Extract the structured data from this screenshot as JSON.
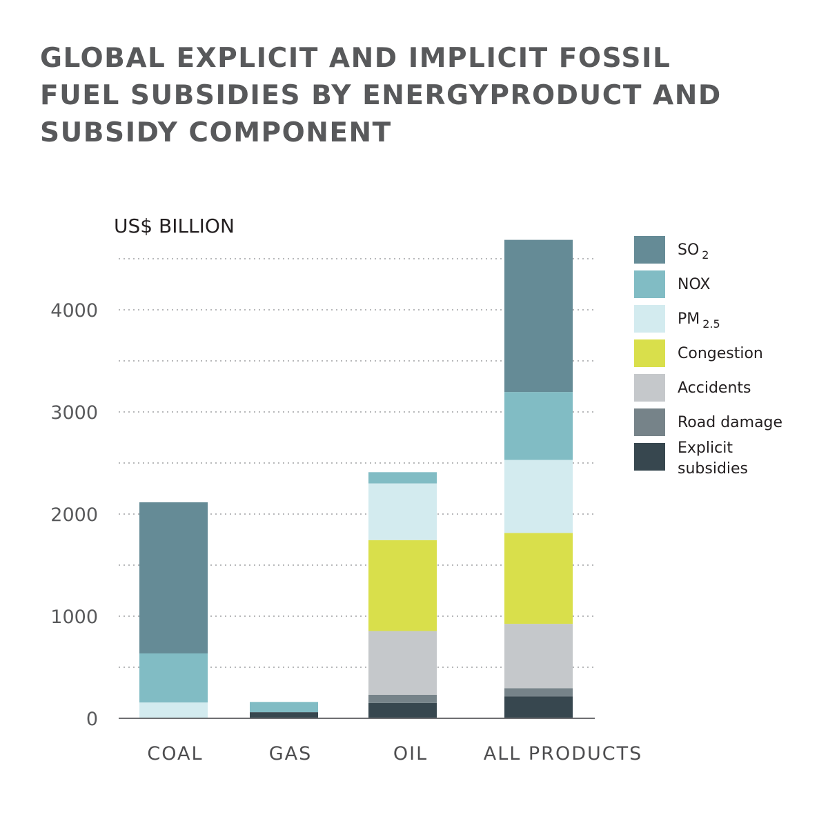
{
  "title": "GLOBAL EXPLICIT AND IMPLICIT FOSSIL FUEL SUBSIDIES BY ENERGYPRODUCT AND SUBSIDY COMPONENT",
  "chart_data": {
    "type": "bar",
    "stacked": true,
    "title": "GLOBAL EXPLICIT AND IMPLICIT FOSSIL FUEL SUBSIDIES BY ENERGYPRODUCT AND SUBSIDY COMPONENT",
    "ylabel": "US$ BILLION",
    "xlabel": "",
    "categories": [
      "COAL",
      "GAS",
      "OIL",
      "ALL PRODUCTS"
    ],
    "ylim": [
      0,
      4700
    ],
    "yticks": [
      0,
      1000,
      2000,
      3000,
      4000
    ],
    "grid": true,
    "legend_position": "right",
    "series": [
      {
        "name": "Explicit subsidies",
        "color": "#37474f",
        "values": [
          0,
          60,
          150,
          215
        ]
      },
      {
        "name": "Road damage",
        "color": "#768389",
        "values": [
          0,
          0,
          80,
          80
        ]
      },
      {
        "name": "Accidents",
        "color": "#c5c8cb",
        "values": [
          0,
          0,
          625,
          630
        ]
      },
      {
        "name": "Congestion",
        "color": "#d9df4b",
        "values": [
          0,
          0,
          890,
          890
        ]
      },
      {
        "name": "PM 2.5",
        "color": "#d3ebef",
        "values": [
          155,
          0,
          555,
          715
        ]
      },
      {
        "name": "NOX",
        "color": "#81bcc4",
        "values": [
          480,
          100,
          110,
          665
        ]
      },
      {
        "name": "SO2",
        "color": "#658b96",
        "values": [
          1480,
          0,
          0,
          1490
        ]
      }
    ],
    "legend": [
      {
        "label": "SO",
        "sub": "2",
        "color": "#658b96"
      },
      {
        "label": "NOX",
        "sub": "",
        "color": "#81bcc4"
      },
      {
        "label": "PM",
        "sub": "2.5",
        "color": "#d3ebef"
      },
      {
        "label": "Congestion",
        "sub": "",
        "color": "#d9df4b"
      },
      {
        "label": "Accidents",
        "sub": "",
        "color": "#c5c8cb"
      },
      {
        "label": "Road damage",
        "sub": "",
        "color": "#768389"
      },
      {
        "label": "Explicit",
        "label2": "subsidies",
        "sub": "",
        "color": "#37474f"
      }
    ]
  }
}
